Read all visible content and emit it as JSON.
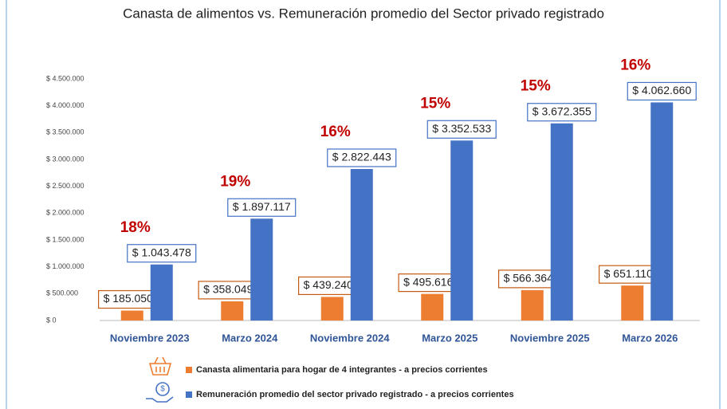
{
  "chart_data": {
    "type": "bar",
    "title": "Canasta de alimentos vs. Remuneración promedio del Sector privado registrado",
    "categories": [
      "Noviembre 2023",
      "Marzo 2024",
      "Noviembre 2024",
      "Marzo 2025",
      "Noviembre 2025",
      "Marzo 2026"
    ],
    "series": [
      {
        "name": "Canasta alimentaria para hogar de 4 integrantes - a precios corrientes",
        "color": "#ed7d31",
        "values": [
          185050,
          358049,
          439240,
          495616,
          566364,
          651110
        ],
        "value_labels": [
          "$ 185.050",
          "$ 358.049",
          "$ 439.240",
          "$ 495.616",
          "$ 566.364",
          "$ 651.110"
        ]
      },
      {
        "name": "Remuneración promedio del sector privado registrado - a precios corrientes",
        "color": "#4472c4",
        "values": [
          1043478,
          1897117,
          2822443,
          3352533,
          3672355,
          4062660
        ],
        "value_labels": [
          "$ 1.043.478",
          "$ 1.897.117",
          "$ 2.822.443",
          "$ 3.352.533",
          "$ 3.672.355",
          "$ 4.062.660"
        ]
      }
    ],
    "percent_labels": [
      "18%",
      "19%",
      "16%",
      "15%",
      "15%",
      "16%"
    ],
    "ylim": [
      0,
      4500000
    ],
    "yticks": [
      {
        "value": 0,
        "label": "$ 0"
      },
      {
        "value": 500000,
        "label": "$ 500.000"
      },
      {
        "value": 1000000,
        "label": "$ 1.000.000"
      },
      {
        "value": 1500000,
        "label": "$ 1.500.000"
      },
      {
        "value": 2000000,
        "label": "$ 2.000.000"
      },
      {
        "value": 2500000,
        "label": "$ 2.500.000"
      },
      {
        "value": 3000000,
        "label": "$ 3.000.000"
      },
      {
        "value": 3500000,
        "label": "$ 3.500.000"
      },
      {
        "value": 4000000,
        "label": "$ 4.000.000"
      },
      {
        "value": 4500000,
        "label": "$ 4.500.000"
      }
    ],
    "grid": false
  }
}
